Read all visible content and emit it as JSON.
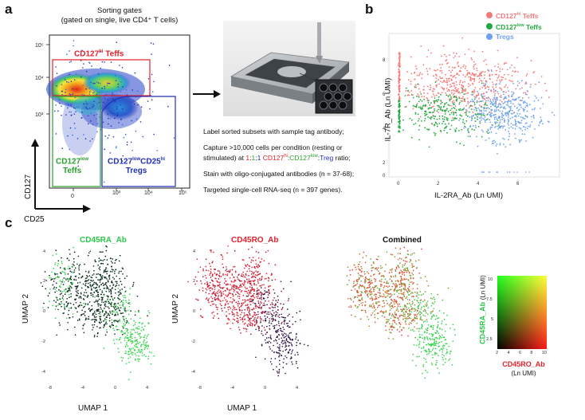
{
  "panel_a": {
    "letter": "a",
    "title_line1": "Sorting gates",
    "title_line2": "(gated on single, live CD4⁺ T cells)",
    "gate_hi": {
      "prefix": "CD127",
      "sup": "hi",
      "suffix": " Teffs",
      "color": "#e3222b"
    },
    "gate_low": {
      "line1": "CD127",
      "line1_sup": "low",
      "line2": "Teffs",
      "color": "#2ca02c"
    },
    "gate_treg": {
      "line1": "CD127",
      "line1_sup": "low",
      "mid": "CD25",
      "mid_sup": "hi",
      "line2": "Tregs",
      "color": "#2230b8"
    },
    "y_ticks": [
      "10⁵",
      "10⁴",
      "10³"
    ],
    "x_ticks": [
      "0",
      "10³",
      "10⁴",
      "10⁵"
    ],
    "axis_y": "CD127",
    "axis_x": "CD25",
    "steps": [
      "Label sorted subsets with sample tag antibody;",
      "Capture >10,000 cells per condition (resting or",
      "Stain with oligo-conjugated antibodies (n = 37-68);",
      "Targeted single-cell RNA-seq (n = 397 genes)."
    ],
    "ratio_line": {
      "pre": "stimulated) at ",
      "n1": "1",
      "c1": ":",
      "n2": "1",
      "c2": ":",
      "n3": "1",
      "sp": " ",
      "hi": "CD127",
      "hi_sup": "hi",
      "colon1": ":",
      "low": "CD127",
      "low_sup": "low",
      "colon2": ":",
      "treg": "Treg",
      "post": " ratio;"
    }
  },
  "panel_b": {
    "letter": "b",
    "legend": [
      {
        "prefix": "CD127",
        "sup": "hi",
        "suffix": " Teffs",
        "color": "#f47a78"
      },
      {
        "prefix": "CD127",
        "sup": "low",
        "suffix": " Teffs",
        "color": "#23a93f"
      },
      {
        "prefix": "Tregs",
        "sup": "",
        "suffix": "",
        "color": "#6ea2f0"
      }
    ],
    "y_ticks": [
      "8",
      "6",
      "4",
      "2",
      "0"
    ],
    "x_ticks": [
      "0",
      "2",
      "4",
      "6"
    ],
    "axis_y": "IL-7R_Ab (Ln UMI)",
    "axis_x": "IL-2RA_Ab (Ln UMI)"
  },
  "panel_c": {
    "letter": "c",
    "plot_titles": [
      "CD45RA_Ab",
      "CD45RO_Ab",
      "Combined"
    ],
    "title_colors": [
      "#2ec84a",
      "#e3222b",
      "#111111"
    ],
    "y_ticks": [
      "4",
      "2",
      "0",
      "-2",
      "-4"
    ],
    "x_ticks": [
      "-8",
      "-4",
      "0",
      "4"
    ],
    "axis_y": "UMAP 2",
    "axis_x": "UMAP 1",
    "colorbar": {
      "y_label": "CD45RA_Ab",
      "y_unit": "(Ln UMI)",
      "x_label": "CD45RO_Ab",
      "x_unit": "(Ln UMI)",
      "y_ticks": [
        "10",
        "7.5",
        "5",
        "2.5"
      ],
      "x_ticks": [
        "2",
        "4",
        "6",
        "8",
        "10"
      ]
    }
  }
}
